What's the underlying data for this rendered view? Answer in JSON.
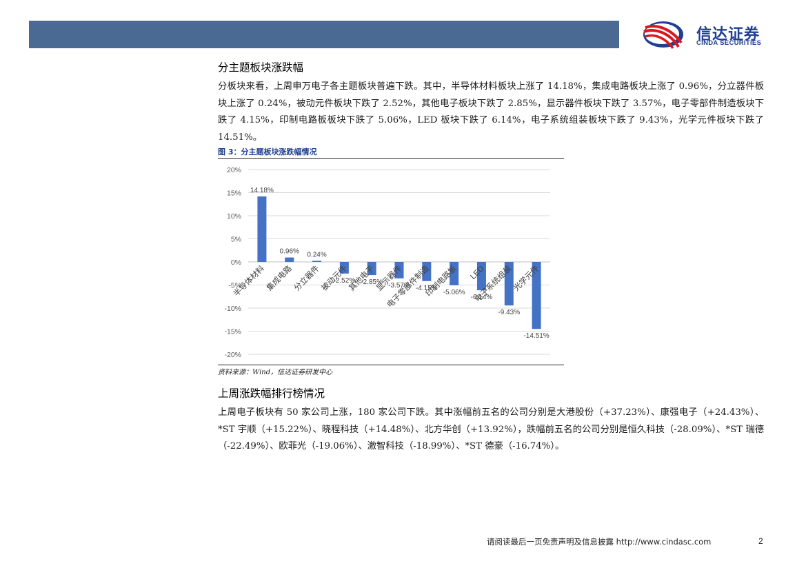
{
  "brand": {
    "name_cn": "信达证券",
    "name_en": "CINDA SECURITIES",
    "colors": {
      "header_bar": "#4a6a94",
      "logo_red": "#d71920",
      "logo_blue": "#1f3f8f",
      "bar": "#4472c4"
    }
  },
  "section1": {
    "heading": "分主题板块涨跌幅",
    "paragraph": "分板块来看，上周申万电子各主题板块普遍下跌。其中，半导体材料板块上涨了 14.18%，集成电路板块上涨了 0.96%，分立器件板块上涨了 0.24%，被动元件板块下跌了 2.52%，其他电子板块下跌了 2.85%，显示器件板块下跌了 3.57%，电子零部件制造板块下跌了 4.15%，印制电路板板块下跌了 5.06%，LED 板块下跌了 6.14%，电子系统组装板块下跌了 9.43%，光学元件板块下跌了 14.51%。"
  },
  "figure": {
    "title": "图 3：分主题板块涨跌幅情况",
    "source": "资料来源：Wind，信达证券研发中心"
  },
  "chart_data": {
    "type": "bar",
    "title": "",
    "xlabel": "",
    "ylabel": "",
    "ylim": [
      -20,
      20
    ],
    "yticks": [
      "20%",
      "15%",
      "10%",
      "5%",
      "0%",
      "-5%",
      "-10%",
      "-15%",
      "-20%"
    ],
    "categories": [
      "半导体材料",
      "集成电路",
      "分立器件",
      "被动元件",
      "其他电子",
      "显示器件",
      "电子零部件制造",
      "印制电路板",
      "LED",
      "电子系统组装",
      "光学元件"
    ],
    "values": [
      14.18,
      0.96,
      0.24,
      -2.52,
      -2.85,
      -3.57,
      -4.15,
      -5.06,
      -6.14,
      -9.43,
      -14.51
    ],
    "data_labels": [
      "14.18%",
      "0.96%",
      "0.24%",
      "-2.52%",
      "-2.85%",
      "-3.57%",
      "-4.15%",
      "-5.06%",
      "-6.14%",
      "-9.43%",
      "-14.51%"
    ],
    "grid": true,
    "legend": "none"
  },
  "section2": {
    "heading": "上周涨跌幅排行榜情况",
    "paragraph": "上周电子板块有 50 家公司上涨，180 家公司下跌。其中涨幅前五名的公司分别是大港股份（+37.23%）、康强电子（+24.43%）、*ST 宇顺（+15.22%）、晓程科技（+14.48%）、北方华创（+13.92%），跌幅前五名的公司分别是恒久科技（-28.09%）、*ST 瑞德（-22.49%）、欧菲光（-19.06%）、激智科技（-18.99%）、*ST 德豪（-16.74%）。"
  },
  "footer": {
    "disclaimer": "请阅读最后一页免责声明及信息披露 http://www.cindasc.com",
    "page_number": "2"
  }
}
